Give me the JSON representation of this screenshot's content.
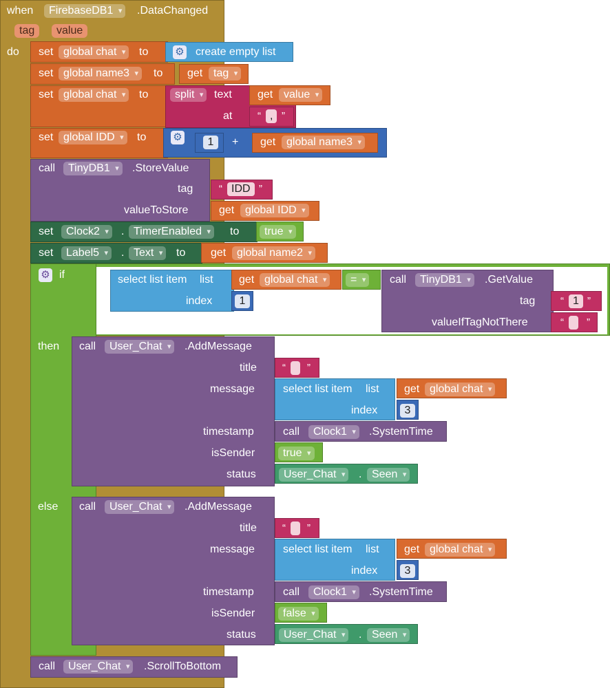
{
  "event": {
    "when": "when",
    "component": "FirebaseDB1",
    "event_name": ".DataChanged",
    "params": [
      "tag",
      "value"
    ],
    "do": "do"
  },
  "stmts": {
    "set_chat": {
      "set": "set",
      "var": "global chat",
      "to": "to",
      "value": "create empty list"
    },
    "set_name3": {
      "set": "set",
      "var": "global name3",
      "to": "to",
      "get": "get",
      "getvar": "tag"
    },
    "set_chat2": {
      "set": "set",
      "var": "global chat",
      "to": "to",
      "split": "split",
      "text": "text",
      "get": "get",
      "getvar": "value",
      "at": "at",
      "sep": ","
    },
    "set_idd": {
      "set": "set",
      "var": "global IDD",
      "to": "to",
      "num": "1",
      "plus": "+",
      "get": "get",
      "getvar": "global name3"
    },
    "store": {
      "call": "call",
      "component": "TinyDB1",
      "method": ".StoreValue",
      "tag_label": "tag",
      "tag_value": "IDD",
      "vts_label": "valueToStore",
      "get": "get",
      "getvar": "global IDD"
    },
    "set_clock": {
      "set": "set",
      "component": "Clock2",
      "dot": ".",
      "prop": "TimerEnabled",
      "to": "to",
      "value": "true"
    },
    "set_label": {
      "set": "set",
      "component": "Label5",
      "dot": ".",
      "prop": "Text",
      "to": "to",
      "get": "get",
      "getvar": "global name2"
    }
  },
  "ifblock": {
    "if": "if",
    "then": "then",
    "else": "else",
    "cond": {
      "select": "select list item",
      "list": "list",
      "get": "get",
      "getvar": "global chat",
      "index": "index",
      "num": "1",
      "eq": "=",
      "call": "call",
      "component": "TinyDB1",
      "method": ".GetValue",
      "tag_label": "tag",
      "tag_value": "1",
      "vitnt": "valueIfTagNotThere"
    },
    "then_call": {
      "call": "call",
      "component": "User_Chat",
      "method": ".AddMessage",
      "title": "title",
      "message": "message",
      "select": "select list item",
      "list": "list",
      "get": "get",
      "getvar": "global chat",
      "index": "index",
      "num": "3",
      "timestamp": "timestamp",
      "tcall": "call",
      "clock": "Clock1",
      "systime": ".SystemTime",
      "issender": "isSender",
      "sender_val": "true",
      "status": "status",
      "status_comp": "User_Chat",
      "dot": ".",
      "status_val": "Seen"
    },
    "else_call": {
      "call": "call",
      "component": "User_Chat",
      "method": ".AddMessage",
      "title": "title",
      "message": "message",
      "select": "select list item",
      "list": "list",
      "get": "get",
      "getvar": "global chat",
      "index": "index",
      "num": "3",
      "timestamp": "timestamp",
      "tcall": "call",
      "clock": "Clock1",
      "systime": ".SystemTime",
      "issender": "isSender",
      "sender_val": "false",
      "status": "status",
      "status_comp": "User_Chat",
      "dot": ".",
      "status_val": "Seen"
    }
  },
  "scroll": {
    "call": "call",
    "component": "User_Chat",
    "method": ".ScrollToBottom"
  },
  "colors": {
    "event": "#b18e35",
    "variables": "#d4662a",
    "procedures_purple": "#7a5a8e",
    "lists": "#4da3d8",
    "math": "#3a6ab6",
    "components_green": "#2e6a46",
    "logic": "#6eb138",
    "text": "#b8295d"
  }
}
